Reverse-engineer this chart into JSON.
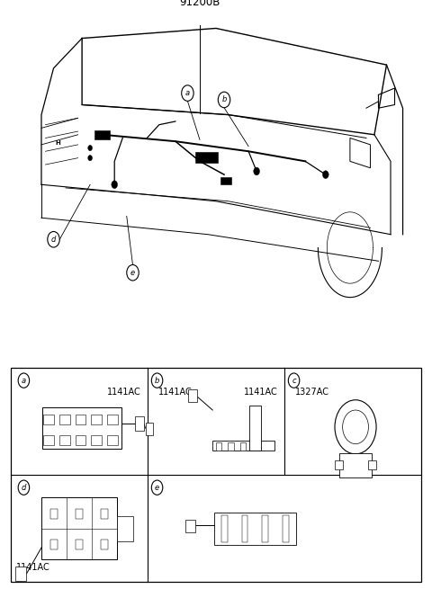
{
  "title_label": "91200B",
  "bg_color": "#ffffff",
  "line_color": "#000000",
  "part_labels": {
    "a_part": "1141AC",
    "b_part": "1141AC",
    "c_part": "1327AC",
    "d_part": "1141AC",
    "e_part": "1141AC"
  },
  "font_size_part": 7.0,
  "font_size_label": 6.5,
  "font_size_title": 8.5
}
